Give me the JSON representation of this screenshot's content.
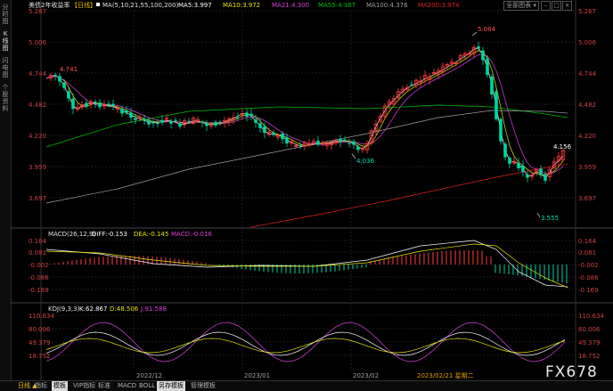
{
  "sidebar": {
    "items": [
      {
        "label": "分时图"
      },
      {
        "label": "K线图"
      },
      {
        "label": "闪电图"
      },
      {
        "label": "个股资料"
      }
    ]
  },
  "header": {
    "title": "美债2年收益率",
    "period": "【日线】",
    "ma_label": "MA(5,10,21,55,100,200)",
    "ma5": "MA5:3.997",
    "ma10": "MA10:3.972",
    "ma21": "MA21:4.300",
    "ma55": "MA55:4.367",
    "ma100": "MA100:4.376",
    "ma200": "MA200:3.974",
    "dropdown_label": "全部图表"
  },
  "price_axis": {
    "ticks": [
      "5.267",
      "5.006",
      "4.744",
      "4.482",
      "4.220",
      "3.959",
      "3.697"
    ],
    "current_price": "4.156"
  },
  "annotations": {
    "high1": "4.741",
    "high2": "5.084",
    "low1": "4.036",
    "low2": "3.555"
  },
  "macd": {
    "label": "MACD(26,12,9)",
    "diff": "DIFF:-0.153",
    "dea": "DEA:-0.145",
    "macd": "MACD:-0.016",
    "ticks": [
      "0.164",
      "0.081",
      "-0.002",
      "-0.086",
      "-0.169"
    ]
  },
  "kdj": {
    "label": "KDJ(9,3,3)",
    "k": "K:62.867",
    "d": "D:48.506",
    "j": "J:91.588",
    "ticks": [
      "110.634",
      "80.006",
      "49.379",
      "18.752"
    ]
  },
  "time_axis": {
    "labels": [
      "2022/12",
      "2023/01",
      "2023/02",
      "2023/02/21 星期二"
    ]
  },
  "bottom_tabs": [
    {
      "label": "日线 ▲"
    },
    {
      "label": "指标"
    },
    {
      "label": "模板"
    },
    {
      "label": "VIP指标"
    },
    {
      "label": "标准"
    },
    {
      "label": "MACD"
    },
    {
      "label": "BOLL"
    },
    {
      "label": "另存模板"
    },
    {
      "label": "管理模板"
    }
  ],
  "watermark": "FX678",
  "colors": {
    "up": "#ff3b3b",
    "down": "#00d4a0",
    "ma5": "#ffffff",
    "ma10": "#e6e600",
    "ma21": "#e040e0",
    "ma55": "#00c000",
    "ma100": "#a0a0a0",
    "ma200": "#e02020"
  }
}
